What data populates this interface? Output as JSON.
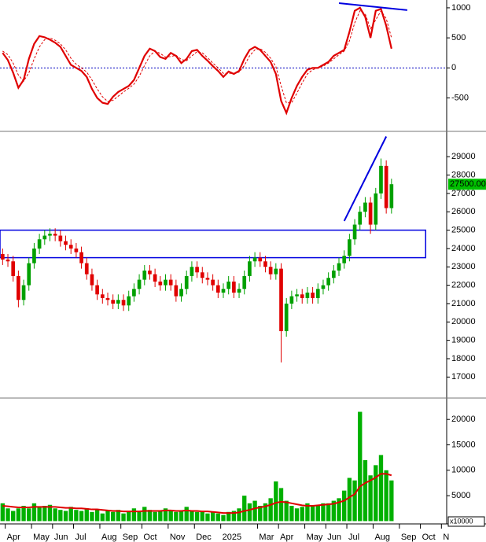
{
  "chart_data": [
    {
      "type": "line",
      "ylim": [
        -1030,
        1130
      ],
      "yticks": [
        -500,
        0,
        500,
        1000
      ],
      "zero_line": true,
      "series": [
        {
          "name": "oscillator",
          "color": "#e00000",
          "values": [
            250,
            130,
            -80,
            -330,
            -200,
            150,
            400,
            530,
            510,
            470,
            420,
            350,
            200,
            50,
            0,
            -50,
            -150,
            -350,
            -500,
            -580,
            -600,
            -480,
            -400,
            -350,
            -300,
            -200,
            0,
            200,
            320,
            280,
            180,
            150,
            250,
            200,
            80,
            150,
            280,
            300,
            200,
            120,
            30,
            -50,
            -150,
            -60,
            -100,
            -50,
            150,
            300,
            350,
            300,
            200,
            100,
            -100,
            -550,
            -750,
            -500,
            -300,
            -150,
            -30,
            0,
            0,
            50,
            100,
            200,
            250,
            300,
            600,
            950,
            1000,
            850,
            500,
            950,
            980,
            700,
            320,
            null,
            null,
            null,
            null,
            null,
            null,
            null,
            null,
            null,
            null
          ]
        },
        {
          "name": "signal",
          "color": "#e00000",
          "dashed": true,
          "values": [
            280,
            220,
            80,
            -120,
            -220,
            -80,
            150,
            350,
            470,
            500,
            460,
            400,
            300,
            160,
            60,
            0,
            -70,
            -200,
            -350,
            -480,
            -560,
            -540,
            -470,
            -400,
            -340,
            -270,
            -140,
            40,
            200,
            280,
            240,
            180,
            190,
            210,
            140,
            120,
            200,
            270,
            250,
            170,
            80,
            0,
            -90,
            -90,
            -90,
            -70,
            40,
            200,
            300,
            320,
            260,
            160,
            20,
            -300,
            -580,
            -580,
            -420,
            -250,
            -100,
            -30,
            0,
            30,
            80,
            150,
            220,
            280,
            450,
            750,
            950,
            900,
            650,
            800,
            950,
            820,
            500,
            null,
            null,
            null,
            null,
            null,
            null,
            null,
            null,
            null,
            null
          ]
        }
      ],
      "trendlines": [
        {
          "color": "#0000e0",
          "from_index": 64,
          "to_index": 77,
          "values": [
            1078,
            961
          ]
        }
      ]
    },
    {
      "type": "candlestick",
      "ylim": [
        15900,
        30250
      ],
      "yticks": [
        17000,
        18000,
        19000,
        20000,
        21000,
        22000,
        23000,
        24000,
        25000,
        26000,
        27000,
        28000,
        29000
      ],
      "up_color": "#00a000",
      "down_color": "#e00000",
      "open": [
        23700,
        23400,
        23300,
        22500,
        21200,
        22000,
        23200,
        24000,
        24500,
        24700,
        24800,
        24700,
        24400,
        24200,
        24000,
        23800,
        23200,
        22600,
        22000,
        21500,
        21300,
        21200,
        21000,
        21200,
        20900,
        21400,
        21800,
        22300,
        22800,
        22600,
        22200,
        22000,
        22300,
        22000,
        21400,
        21800,
        22500,
        23000,
        22700,
        22400,
        22300,
        22000,
        21600,
        21800,
        22200,
        21600,
        21800,
        22500,
        23300,
        23500,
        23300,
        23000,
        22600,
        22900,
        19500,
        21000,
        21400,
        21500,
        21300,
        21600,
        21300,
        21800,
        22000,
        22400,
        22800,
        23200,
        23600,
        24500,
        25300,
        26000,
        26500,
        25300,
        27000,
        28500,
        26200,
        null,
        null,
        null,
        null,
        null,
        null,
        null,
        null,
        null,
        null
      ],
      "high": [
        24000,
        23700,
        23600,
        22800,
        22300,
        23500,
        24300,
        24800,
        25000,
        25100,
        25100,
        25000,
        24700,
        24500,
        24300,
        24100,
        23500,
        22900,
        22300,
        21800,
        21600,
        21500,
        21500,
        21500,
        21700,
        22100,
        22600,
        23100,
        23100,
        22900,
        22500,
        22600,
        22600,
        22300,
        22100,
        22800,
        23300,
        23300,
        23000,
        22700,
        22600,
        22300,
        22100,
        22500,
        22500,
        22100,
        22800,
        23600,
        23800,
        23800,
        23600,
        23300,
        23200,
        23200,
        21300,
        21700,
        21800,
        21800,
        21900,
        21900,
        22100,
        22300,
        22700,
        23100,
        23500,
        23900,
        24800,
        25600,
        26300,
        26800,
        26800,
        27300,
        28900,
        28800,
        27800,
        null,
        null,
        null,
        null,
        null,
        null,
        null,
        null,
        null,
        null
      ],
      "low": [
        23100,
        23000,
        22200,
        20800,
        20900,
        21700,
        22900,
        23700,
        24200,
        24400,
        24400,
        24100,
        23900,
        23700,
        23500,
        22900,
        22300,
        21700,
        21200,
        21000,
        20900,
        20700,
        20700,
        20600,
        20600,
        21100,
        21500,
        22000,
        22300,
        21900,
        21700,
        21700,
        21700,
        21100,
        21100,
        21500,
        22200,
        22400,
        22100,
        22000,
        21700,
        21300,
        21300,
        21500,
        21300,
        21300,
        21500,
        22200,
        23000,
        23000,
        22700,
        22300,
        22300,
        17800,
        19200,
        20700,
        21100,
        21000,
        21000,
        21000,
        21000,
        21500,
        21700,
        22100,
        22500,
        22900,
        23300,
        24200,
        25000,
        25700,
        24800,
        25000,
        26700,
        25900,
        25900,
        null,
        null,
        null,
        null,
        null,
        null,
        null,
        null,
        null,
        null
      ],
      "close": [
        23400,
        23300,
        22500,
        21200,
        22000,
        23200,
        24000,
        24500,
        24700,
        24800,
        24700,
        24400,
        24200,
        24000,
        23800,
        23200,
        22600,
        22000,
        21500,
        21300,
        21200,
        21000,
        21200,
        20900,
        21400,
        21800,
        22300,
        22800,
        22600,
        22200,
        22000,
        22300,
        22000,
        21400,
        21800,
        22500,
        23000,
        22700,
        22400,
        22300,
        22000,
        21600,
        21800,
        22200,
        21600,
        21800,
        22500,
        23300,
        23500,
        23300,
        23000,
        22600,
        22900,
        19500,
        21000,
        21400,
        21500,
        21300,
        21600,
        21300,
        21800,
        22000,
        22400,
        22800,
        23200,
        23600,
        24500,
        25300,
        26000,
        26500,
        25300,
        27000,
        28500,
        26200,
        27500,
        null,
        null,
        null,
        null,
        null,
        null,
        null,
        null,
        null,
        null
      ],
      "last_price": {
        "value": 27500,
        "label": "27500.00",
        "color": "#00c000"
      },
      "zones": [
        {
          "color": "#0000e0",
          "from_index": 0,
          "to_index": 81,
          "range": [
            23500,
            25000
          ]
        }
      ],
      "trendlines": [
        {
          "color": "#0000e0",
          "from_index": 65,
          "to_index": 73,
          "values": [
            25500,
            30100
          ]
        }
      ]
    },
    {
      "type": "bar",
      "ylim": [
        -400,
        23900
      ],
      "yticks": [
        5000,
        10000,
        15000,
        20000
      ],
      "volume_unit": "x10000",
      "categories": [
        null,
        "Apr",
        null,
        null,
        null,
        null,
        "May",
        null,
        null,
        null,
        "Jun",
        null,
        null,
        null,
        "Jul",
        null,
        null,
        null,
        null,
        "Aug",
        null,
        null,
        null,
        "Sep",
        null,
        null,
        null,
        "Oct",
        null,
        null,
        null,
        null,
        "Nov",
        null,
        null,
        null,
        null,
        "Dec",
        null,
        null,
        null,
        null,
        "2025",
        null,
        null,
        null,
        null,
        null,
        null,
        "Mar",
        null,
        null,
        null,
        "Apr",
        null,
        null,
        null,
        null,
        "May",
        null,
        null,
        null,
        "Jun",
        null,
        null,
        null,
        "Jul",
        null,
        null,
        null,
        null,
        "Aug",
        null,
        null,
        null,
        null,
        "Sep",
        null,
        null,
        null,
        "Oct",
        null,
        null,
        null,
        "N"
      ],
      "series": [
        {
          "name": "volume",
          "color": "#00b000",
          "values": [
            3500,
            2500,
            2000,
            2500,
            3000,
            2500,
            3500,
            2800,
            3000,
            3200,
            2500,
            2200,
            2000,
            2800,
            2200,
            2000,
            2500,
            1800,
            2200,
            1500,
            2000,
            1800,
            2200,
            1500,
            1800,
            2500,
            2000,
            2800,
            2200,
            1800,
            2000,
            2500,
            2200,
            1800,
            2000,
            2800,
            2000,
            1800,
            2000,
            1500,
            1800,
            1500,
            1200,
            1800,
            2000,
            2500,
            5000,
            3500,
            4000,
            3000,
            3500,
            4500,
            7800,
            6500,
            4000,
            3000,
            2500,
            2800,
            3500,
            3000,
            3000,
            3500,
            3500,
            4000,
            4500,
            6000,
            8500,
            8000,
            21500,
            12000,
            9000,
            11000,
            13000,
            10000,
            8000,
            null,
            null,
            null,
            null,
            null,
            null,
            null,
            null,
            null,
            null
          ]
        },
        {
          "name": "volume-ma",
          "color": "#e00000",
          "values": [
            3000,
            2900,
            2800,
            2700,
            2700,
            2700,
            2800,
            2800,
            2800,
            2800,
            2800,
            2700,
            2600,
            2600,
            2500,
            2500,
            2400,
            2300,
            2300,
            2200,
            2100,
            2000,
            2000,
            1900,
            1900,
            1900,
            1900,
            2000,
            2000,
            2000,
            2000,
            2100,
            2100,
            2000,
            2000,
            2100,
            2000,
            2000,
            1900,
            1900,
            1800,
            1700,
            1600,
            1600,
            1600,
            1700,
            2000,
            2200,
            2500,
            2700,
            2900,
            3200,
            3600,
            3800,
            3700,
            3500,
            3300,
            3100,
            3000,
            3000,
            3100,
            3200,
            3300,
            3400,
            3700,
            4000,
            4700,
            5300,
            6800,
            7500,
            8000,
            8600,
            9300,
            9300,
            9000,
            null,
            null,
            null,
            null,
            null,
            null,
            null,
            null,
            null,
            null
          ]
        }
      ]
    }
  ]
}
